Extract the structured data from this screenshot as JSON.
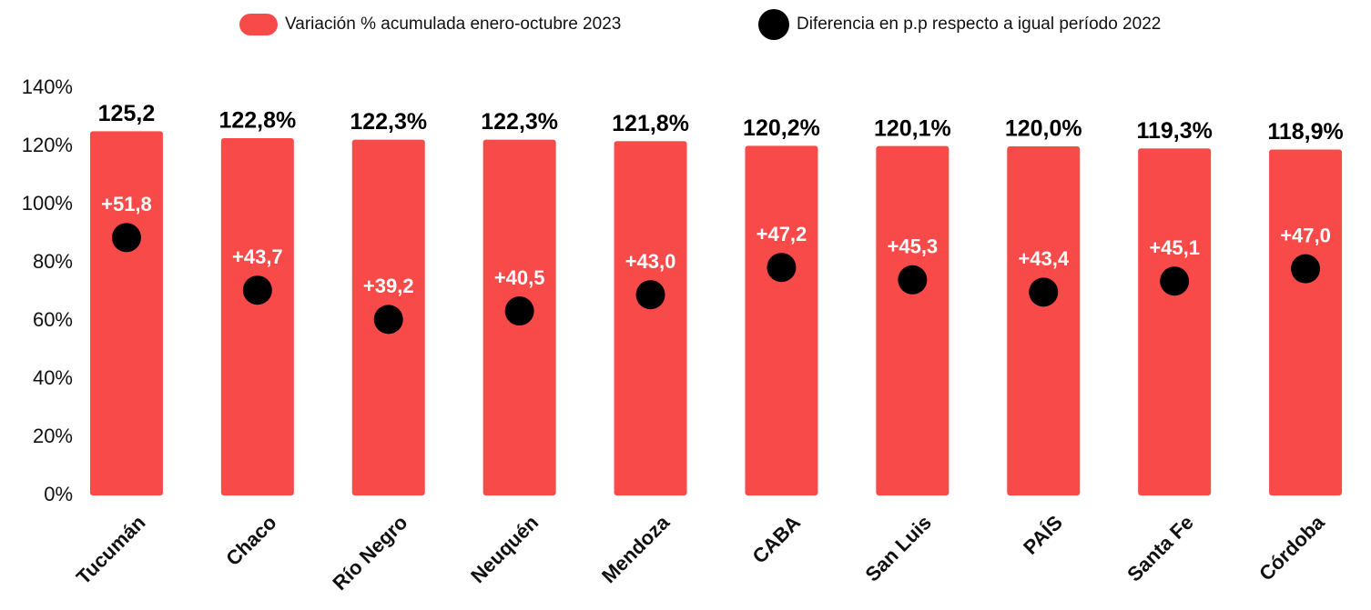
{
  "chart_data": {
    "type": "bar",
    "categories": [
      "Tucumán",
      "Chaco",
      "Río Negro",
      "Neuquén",
      "Mendoza",
      "CABA",
      "San Luis",
      "PAÍS",
      "Santa Fe",
      "Córdoba"
    ],
    "series": [
      {
        "name": "Variación % acumulada enero-octubre 2023",
        "color": "#f94a4a",
        "type": "bar",
        "values": [
          125.2,
          122.8,
          122.3,
          122.3,
          121.8,
          120.2,
          120.1,
          120.0,
          119.3,
          118.9
        ],
        "value_labels": [
          "125,2",
          "122,8%",
          "122,3%",
          "122,3%",
          "121,8%",
          "120,2%",
          "120,1%",
          "120,0%",
          "119,3%",
          "118,9%"
        ]
      },
      {
        "name": "Diferencia en p.p respecto a igual período 2022",
        "color": "#000000",
        "type": "scatter",
        "axis": "y2",
        "values": [
          51.8,
          43.7,
          39.2,
          40.5,
          43.0,
          47.2,
          45.3,
          43.4,
          45.1,
          47.0
        ],
        "value_labels": [
          "+51,8",
          "+43,7",
          "+39,2",
          "+40,5",
          "+43,0",
          "+47,2",
          "+45,3",
          "+43,4",
          "+45,1",
          "+47,0"
        ]
      }
    ],
    "ylim": [
      0,
      140
    ],
    "yticks": [
      {
        "value": 0,
        "label": "0%"
      },
      {
        "value": 20,
        "label": "20%"
      },
      {
        "value": 40,
        "label": "40%"
      },
      {
        "value": 60,
        "label": "60%"
      },
      {
        "value": 80,
        "label": "80%"
      },
      {
        "value": 100,
        "label": "100%"
      },
      {
        "value": 120,
        "label": "120%"
      },
      {
        "value": 140,
        "label": "140%"
      }
    ],
    "y2lim": [
      12.1,
      74.8
    ],
    "grid": false,
    "legend": "top"
  }
}
